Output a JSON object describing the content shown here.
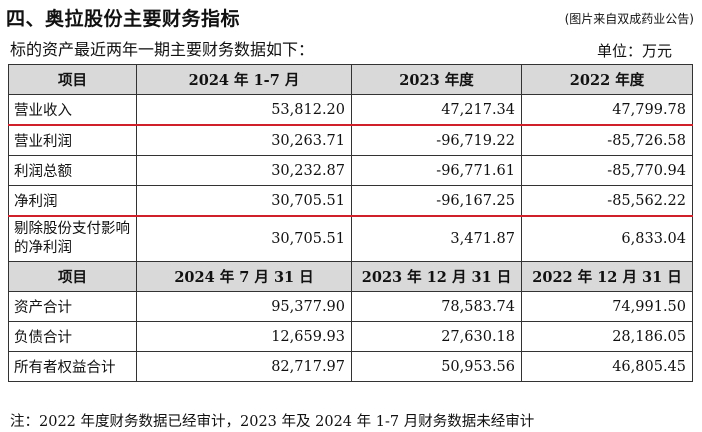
{
  "heading": {
    "title": "四、奥拉股份主要财务指标",
    "source": "(图片来自双成药业公告)"
  },
  "intro": "标的资产最近两年一期主要财务数据如下：",
  "unit": "单位：万元",
  "table1": {
    "headers": [
      "项目",
      "2024 年 1-7 月",
      "2023 年度",
      "2022 年度"
    ],
    "rows": [
      {
        "label": "营业收入",
        "values": [
          "53,812.20",
          "47,217.34",
          "47,799.78"
        ]
      },
      {
        "label": "营业利润",
        "values": [
          "30,263.71",
          "-96,719.22",
          "-85,726.58"
        ]
      },
      {
        "label": "利润总额",
        "values": [
          "30,232.87",
          "-96,771.61",
          "-85,770.94"
        ]
      },
      {
        "label": "净利润",
        "values": [
          "30,705.51",
          "-96,167.25",
          "-85,562.22"
        ]
      },
      {
        "label": "剔除股份支付影响的净利润",
        "values": [
          "30,705.51",
          "3,471.87",
          "6,833.04"
        ]
      }
    ]
  },
  "table2": {
    "headers": [
      "项目",
      "2024 年 7 月 31 日",
      "2023 年 12 月 31 日",
      "2022 年 12 月 31 日"
    ],
    "rows": [
      {
        "label": "资产合计",
        "values": [
          "95,377.90",
          "78,583.74",
          "74,991.50"
        ]
      },
      {
        "label": "负债合计",
        "values": [
          "12,659.93",
          "27,630.18",
          "28,186.05"
        ]
      },
      {
        "label": "所有者权益合计",
        "values": [
          "82,717.97",
          "50,953.56",
          "46,805.45"
        ]
      }
    ]
  },
  "note": "注：2022 年度财务数据已经审计，2023 年及 2024 年 1-7 月财务数据未经审计",
  "colors": {
    "highlight_line": "#d0202a",
    "header_bg": "#d9d9d9"
  }
}
